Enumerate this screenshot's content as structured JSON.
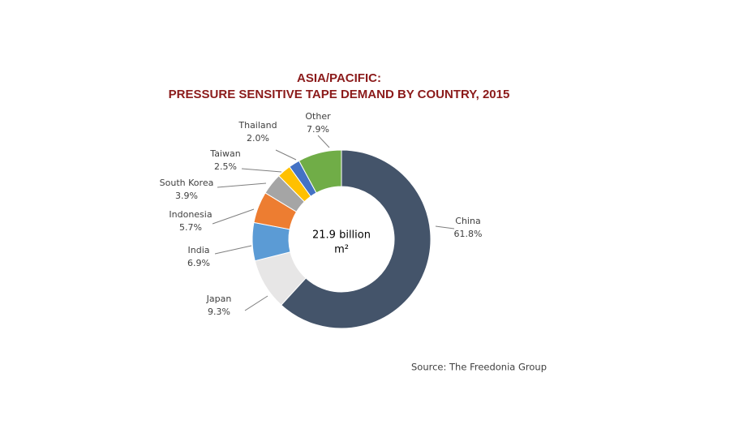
{
  "chart_data": {
    "type": "donut",
    "title": [
      "ASIA/PACIFIC:",
      "PRESSURE SENSITIVE TAPE DEMAND BY COUNTRY, 2015"
    ],
    "center_label": [
      "21.9 billion",
      "m²"
    ],
    "categories": [
      "China",
      "Japan",
      "India",
      "Indonesia",
      "South Korea",
      "Taiwan",
      "Thailand",
      "Other"
    ],
    "values": [
      61.8,
      9.3,
      6.9,
      5.7,
      3.9,
      2.5,
      2.0,
      7.9
    ],
    "value_labels": [
      "61.8%",
      "9.3%",
      "6.9%",
      "5.7%",
      "3.9%",
      "2.5%",
      "2.0%",
      "7.9%"
    ],
    "colors": [
      "#44546a",
      "#e7e6e6",
      "#5b9bd5",
      "#ed7d31",
      "#a5a5a5",
      "#ffc000",
      "#4472c4",
      "#70ad47"
    ],
    "source": "Source: The Freedonia Group"
  }
}
